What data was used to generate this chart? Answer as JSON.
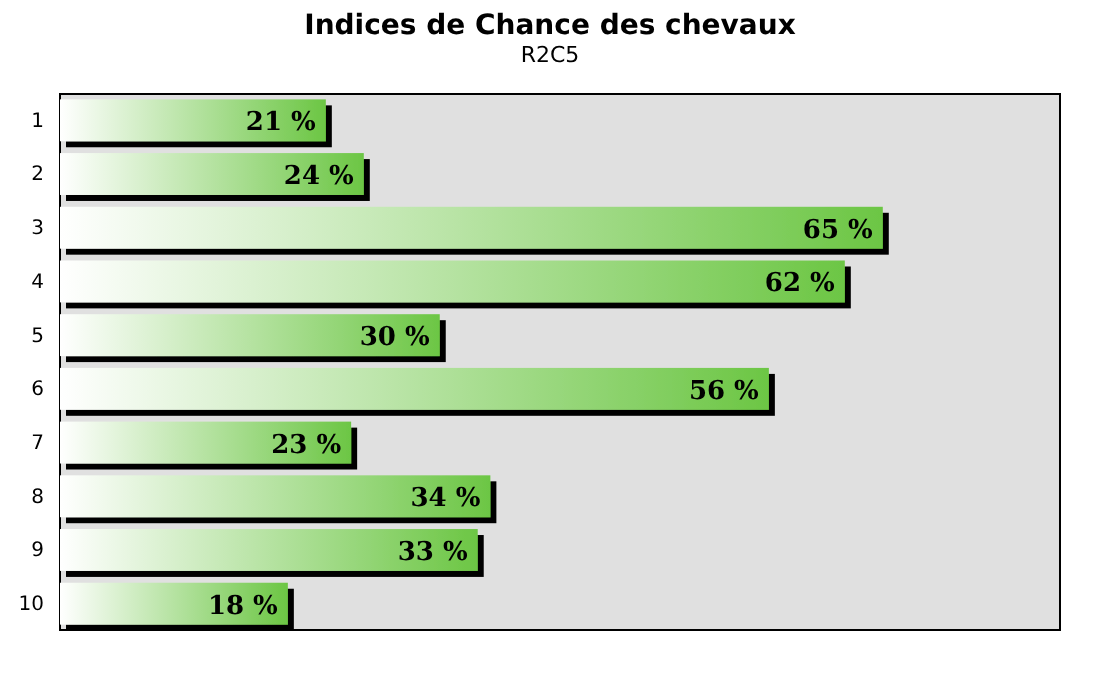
{
  "chart_data": {
    "type": "bar",
    "orientation": "horizontal",
    "title": "Indices de Chance des chevaux",
    "subtitle": "R2C5",
    "categories": [
      "1",
      "2",
      "3",
      "4",
      "5",
      "6",
      "7",
      "8",
      "9",
      "10"
    ],
    "values": [
      21,
      24,
      65,
      62,
      30,
      56,
      23,
      34,
      33,
      18
    ],
    "value_labels": [
      "21 %",
      "24 %",
      "65 %",
      "62 %",
      "30 %",
      "56 %",
      "23 %",
      "34 %",
      "33 %",
      "18 %"
    ],
    "color": "#6cc644",
    "xlim": [
      0,
      79
    ],
    "tick_labels": "y",
    "grid": false
  }
}
